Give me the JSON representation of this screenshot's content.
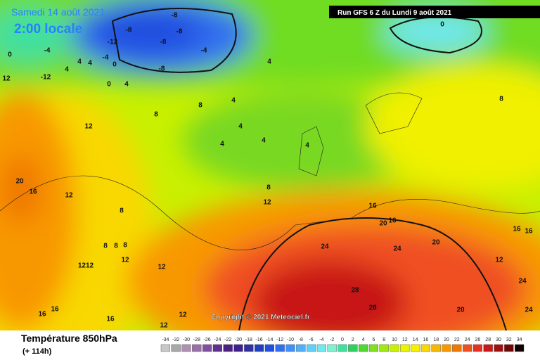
{
  "header": {
    "date": "Samedi 14 août 2021",
    "time": "2:00 locale",
    "run": "Run GFS 6 Z du Lundi 9 août 2021"
  },
  "copyright": "Copyright © 2021 Meteociel.fr",
  "footer": {
    "title": "Température 850hPa",
    "lead": "(+ 114h)"
  },
  "legend": {
    "ticks": [
      -34,
      -32,
      -30,
      -28,
      -26,
      -24,
      -22,
      -20,
      -18,
      -16,
      -14,
      -12,
      -10,
      -8,
      -6,
      -4,
      -2,
      0,
      2,
      4,
      6,
      8,
      10,
      12,
      14,
      16,
      18,
      20,
      22,
      24,
      26,
      28,
      30,
      32,
      34
    ],
    "colors": [
      "#c8c8c8",
      "#a8a8a8",
      "#b090b0",
      "#9870a8",
      "#8050a0",
      "#603090",
      "#4a2080",
      "#402090",
      "#3030a0",
      "#2040c0",
      "#2050e0",
      "#3070f0",
      "#4090f8",
      "#50b0f8",
      "#60d0f8",
      "#70e8f0",
      "#80f0d0",
      "#40e0a0",
      "#30d060",
      "#50d830",
      "#80e020",
      "#a0e810",
      "#c8f000",
      "#e8f400",
      "#f8f000",
      "#f8d800",
      "#f8b800",
      "#f89800",
      "#f07800",
      "#f05020",
      "#e83020",
      "#c81818",
      "#a01010",
      "#700808",
      "#100000"
    ]
  },
  "map_labels": [
    "-8",
    "-8",
    "-8",
    "-8",
    "-12",
    "-8",
    "-4",
    "-4",
    "-4",
    "0",
    "4",
    "4",
    "4",
    "0",
    "4",
    "4",
    "0",
    "8",
    "8",
    "4",
    "8",
    "12",
    "4",
    "4",
    "4",
    "4",
    "8",
    "12",
    "16",
    "20",
    "16",
    "20",
    "16",
    "16",
    "24",
    "24",
    "28",
    "28",
    "20",
    "24",
    "24",
    "12",
    "12",
    "16",
    "20",
    "12",
    "8",
    "8",
    "8",
    "8",
    "12",
    "12",
    "1212",
    "16",
    "16",
    "12",
    "12",
    "16",
    "-12",
    "0"
  ]
}
